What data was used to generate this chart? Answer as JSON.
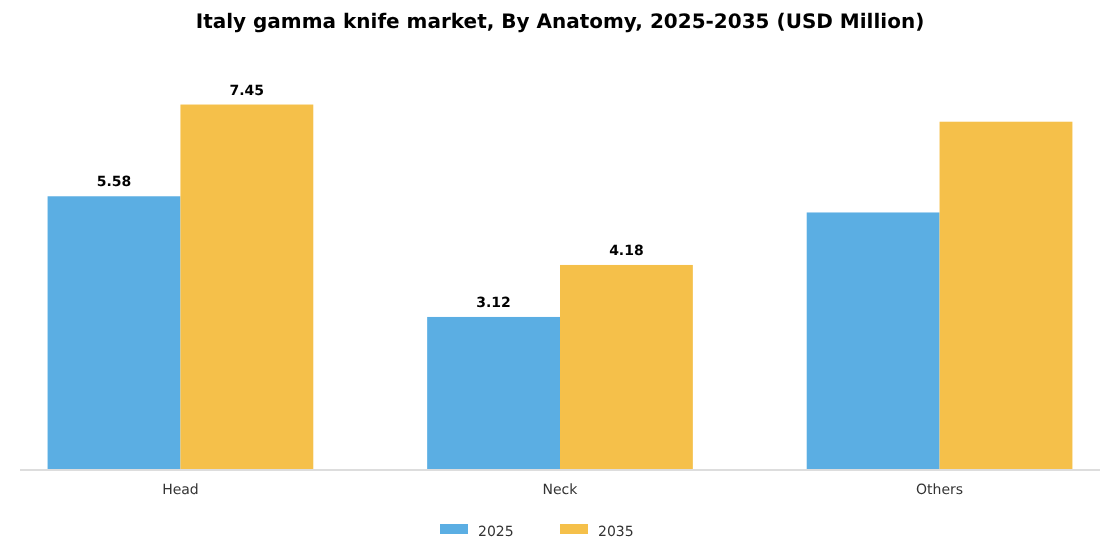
{
  "chart_data": {
    "type": "bar",
    "title": "Italy gamma knife market, By Anatomy, 2025-2035 (USD Million)",
    "categories": [
      "Head",
      "Neck",
      "Others"
    ],
    "series": [
      {
        "name": "2025",
        "color": "#5baee3",
        "values": [
          5.58,
          3.12,
          5.25
        ],
        "value_labels": [
          "5.58",
          "3.12",
          null
        ]
      },
      {
        "name": "2035",
        "color": "#f5c04a",
        "values": [
          7.45,
          4.18,
          7.1
        ],
        "value_labels": [
          "7.45",
          "4.18",
          null
        ]
      }
    ],
    "legend": "bottom",
    "grid": false
  }
}
